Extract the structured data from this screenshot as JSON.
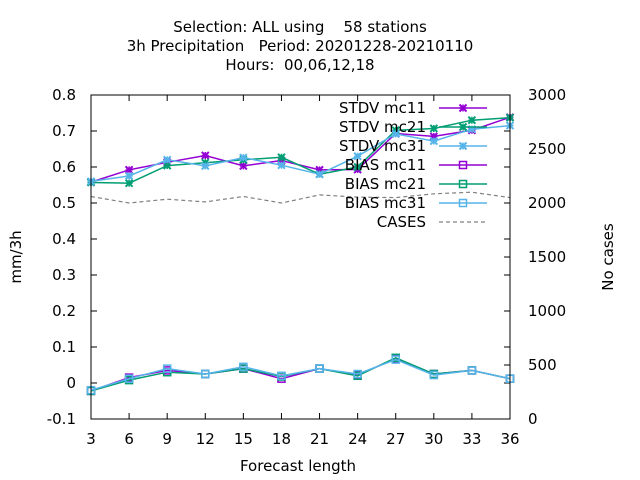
{
  "chart_data": {
    "type": "line",
    "title_lines": [
      "Selection: ALL using    58 stations",
      "3h Precipitation   Period: 20201228-20210110",
      "Hours:  00,06,12,18"
    ],
    "xlabel": "Forecast length",
    "ylabel": "mm/3h",
    "y2label": "No cases",
    "x": [
      3,
      6,
      9,
      12,
      15,
      18,
      21,
      24,
      27,
      30,
      33,
      36
    ],
    "xlim": [
      3,
      36
    ],
    "ylim": [
      -0.1,
      0.8
    ],
    "y2lim": [
      0,
      3000
    ],
    "yticks": [
      -0.1,
      0,
      0.1,
      0.2,
      0.3,
      0.4,
      0.5,
      0.6,
      0.7,
      0.8
    ],
    "ytick_labels": [
      "-0.1",
      "0",
      "0.1",
      "0.2",
      "0.3",
      "0.4",
      "0.5",
      "0.6",
      "0.7",
      "0.8"
    ],
    "y2ticks": [
      0,
      500,
      1000,
      1500,
      2000,
      2500,
      3000
    ],
    "y2tick_labels": [
      "0",
      "500",
      "1000",
      "1500",
      "2000",
      "2500",
      "3000"
    ],
    "xtick_labels": [
      "3",
      "6",
      "9",
      "12",
      "15",
      "18",
      "21",
      "24",
      "27",
      "30",
      "33",
      "36"
    ],
    "grid": false,
    "legend_position": "top-right",
    "series": [
      {
        "name": "STDV mc11",
        "axis": "y",
        "color": "#9400d3",
        "marker": "x",
        "dash": "",
        "values": [
          0.558,
          0.592,
          0.613,
          0.632,
          0.603,
          0.618,
          0.592,
          0.593,
          0.693,
          0.685,
          0.702,
          0.738
        ]
      },
      {
        "name": "STDV mc21",
        "axis": "y",
        "color": "#009e73",
        "marker": "x",
        "dash": "",
        "values": [
          0.557,
          0.555,
          0.604,
          0.612,
          0.62,
          0.627,
          0.58,
          0.6,
          0.702,
          0.707,
          0.73,
          0.737
        ]
      },
      {
        "name": "STDV mc31",
        "axis": "y",
        "color": "#56b4e9",
        "marker": "x",
        "dash": "",
        "values": [
          0.56,
          0.575,
          0.62,
          0.603,
          0.626,
          0.605,
          0.58,
          0.63,
          0.692,
          0.672,
          0.705,
          0.715
        ]
      },
      {
        "name": "BIAS mc11",
        "axis": "y",
        "color": "#9400d3",
        "marker": "square",
        "dash": "",
        "values": [
          -0.022,
          0.015,
          0.035,
          0.025,
          0.04,
          0.012,
          0.04,
          0.022,
          0.068,
          0.025,
          0.035,
          0.012
        ]
      },
      {
        "name": "BIAS mc21",
        "axis": "y",
        "color": "#009e73",
        "marker": "square",
        "dash": "",
        "values": [
          -0.022,
          0.008,
          0.03,
          0.025,
          0.04,
          0.018,
          0.04,
          0.02,
          0.07,
          0.025,
          0.035,
          0.012
        ]
      },
      {
        "name": "BIAS mc31",
        "axis": "y",
        "color": "#56b4e9",
        "marker": "square",
        "dash": "",
        "values": [
          -0.02,
          0.012,
          0.04,
          0.025,
          0.045,
          0.02,
          0.04,
          0.025,
          0.065,
          0.022,
          0.035,
          0.012
        ]
      },
      {
        "name": "CASES",
        "axis": "y2",
        "color": "#808080",
        "marker": "",
        "dash": "4,3",
        "values": [
          2060,
          2000,
          2035,
          2010,
          2060,
          2000,
          2075,
          2055,
          2050,
          2085,
          2100,
          2050
        ]
      }
    ]
  }
}
